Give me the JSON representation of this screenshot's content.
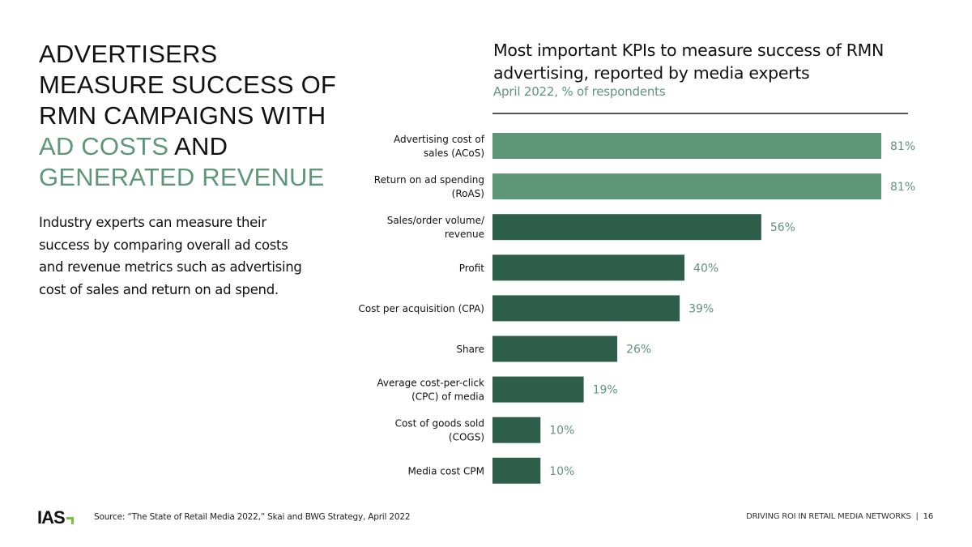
{
  "headline": {
    "line1": "ADVERTISERS",
    "line2": "MEASURE SUCCESS OF",
    "line3": "RMN CAMPAIGNS WITH",
    "accent1": "AD COSTS",
    "and": " AND",
    "accent2": "GENERATED REVENUE"
  },
  "body_text": "Industry experts can measure their success by comparing overall ad costs and revenue metrics such as advertising cost of sales and return on ad spend.",
  "colors": {
    "accent_light": "#5e9678",
    "accent_dark": "#2d5e4a",
    "logo_green": "#7ac142"
  },
  "chart_data": {
    "type": "bar",
    "orientation": "horizontal",
    "title": "Most important KPIs to measure success of RMN advertising, reported by media experts",
    "subtitle": "April 2022, % of respondents",
    "xlabel": "",
    "ylabel": "",
    "xlim": [
      0,
      81
    ],
    "grid": false,
    "categories": [
      [
        "Advertising cost of",
        "sales (ACoS)"
      ],
      [
        "Return on ad spending",
        "(RoAS)"
      ],
      [
        "Sales/order volume/",
        "revenue"
      ],
      [
        "Profit"
      ],
      [
        "Cost per acquisition (CPA)"
      ],
      [
        "Share"
      ],
      [
        "Average cost-per-click",
        "(CPC) of media"
      ],
      [
        "Cost of goods sold",
        "(COGS)"
      ],
      [
        "Media cost CPM"
      ]
    ],
    "values": [
      81,
      81,
      56,
      40,
      39,
      26,
      19,
      10,
      10
    ],
    "value_labels": [
      "81%",
      "81%",
      "56%",
      "40%",
      "39%",
      "26%",
      "19%",
      "10%",
      "10%"
    ],
    "highlighted": [
      true,
      true,
      false,
      false,
      false,
      false,
      false,
      false,
      false
    ]
  },
  "footer": {
    "logo": "IAS",
    "source": "Source: “The State of Retail Media 2022,” Skai and BWG Strategy, April 2022",
    "section": "DRIVING ROI IN RETAIL MEDIA NETWORKS",
    "separator": "|",
    "page_number": "16"
  }
}
